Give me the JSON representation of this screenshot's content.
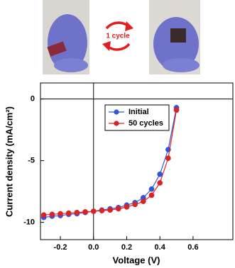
{
  "chart_data": {
    "type": "line",
    "annotation": "1 cycle",
    "x_label": "Voltage (V)",
    "y_label": "Current density (mA/cm²)",
    "x": [
      -0.3,
      -0.25,
      -0.2,
      -0.15,
      -0.1,
      -0.05,
      0.0,
      0.05,
      0.1,
      0.15,
      0.2,
      0.25,
      0.3,
      0.35,
      0.4,
      0.45,
      0.5
    ],
    "series": [
      {
        "name": "Initial",
        "color": "#3355dd",
        "values": [
          -9.6,
          -9.5,
          -9.45,
          -9.35,
          -9.3,
          -9.2,
          -9.1,
          -9.0,
          -8.9,
          -8.8,
          -8.6,
          -8.4,
          -8.0,
          -7.3,
          -6.1,
          -4.1,
          -0.7
        ]
      },
      {
        "name": "50 cycles",
        "color": "#dd2222",
        "values": [
          -9.4,
          -9.35,
          -9.3,
          -9.25,
          -9.2,
          -9.15,
          -9.1,
          -9.05,
          -9.0,
          -8.9,
          -8.75,
          -8.55,
          -8.3,
          -7.8,
          -6.8,
          -4.8,
          -0.9
        ]
      }
    ],
    "xlim": [
      -0.32,
      0.84
    ],
    "ylim": [
      -11.4,
      1.3
    ],
    "xticks": [
      -0.2,
      {
        "value": 0,
        "label": "0.0"
      },
      0.2,
      0.4,
      0.6
    ],
    "yticks": [
      0,
      -5,
      -10
    ],
    "legend": "upper-left"
  }
}
